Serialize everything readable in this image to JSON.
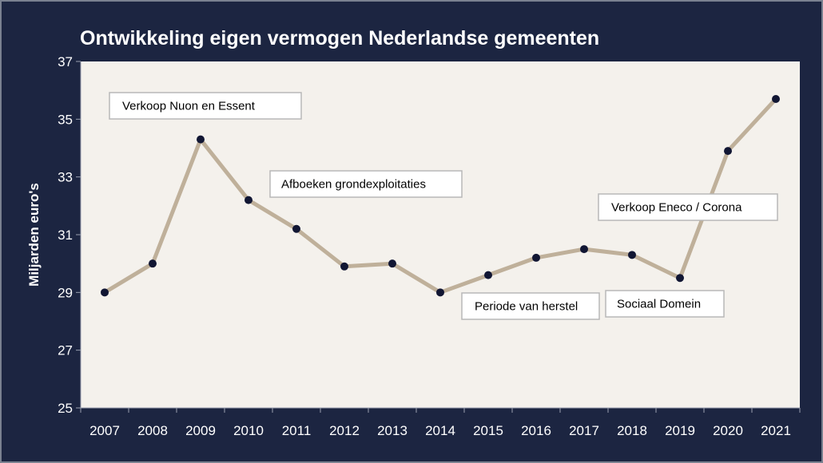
{
  "chart_data": {
    "type": "line",
    "title": "Ontwikkeling eigen vermogen Nederlandse gemeenten",
    "xlabel": "",
    "ylabel": "Miljarden  euro's",
    "ylim": [
      25,
      37
    ],
    "yticks": [
      "25",
      "27",
      "29",
      "31",
      "33",
      "35",
      "37"
    ],
    "categories": [
      "2007",
      "2008",
      "2009",
      "2010",
      "2011",
      "2012",
      "2013",
      "2014",
      "2015",
      "2016",
      "2017",
      "2018",
      "2019",
      "2020",
      "2021"
    ],
    "series": [
      {
        "values": [
          29.0,
          30.0,
          34.3,
          32.2,
          31.2,
          29.9,
          30.0,
          29.0,
          29.6,
          30.2,
          30.5,
          30.3,
          29.5,
          33.9,
          35.7
        ]
      }
    ],
    "annotations": [
      {
        "text": "Verkoop Nuon en Essent"
      },
      {
        "text": "Afboeken grondexploitaties"
      },
      {
        "text": "Verkoop Eneco / Corona"
      },
      {
        "text": "Periode van herstel"
      },
      {
        "text": "Sociaal Domein"
      }
    ],
    "grid": false,
    "legend": "none"
  },
  "colors": {
    "background": "#1c2541",
    "plot_area": "#f4f1ec",
    "line": "#bfb09a",
    "marker": "#111633",
    "text": "#ffffff"
  }
}
